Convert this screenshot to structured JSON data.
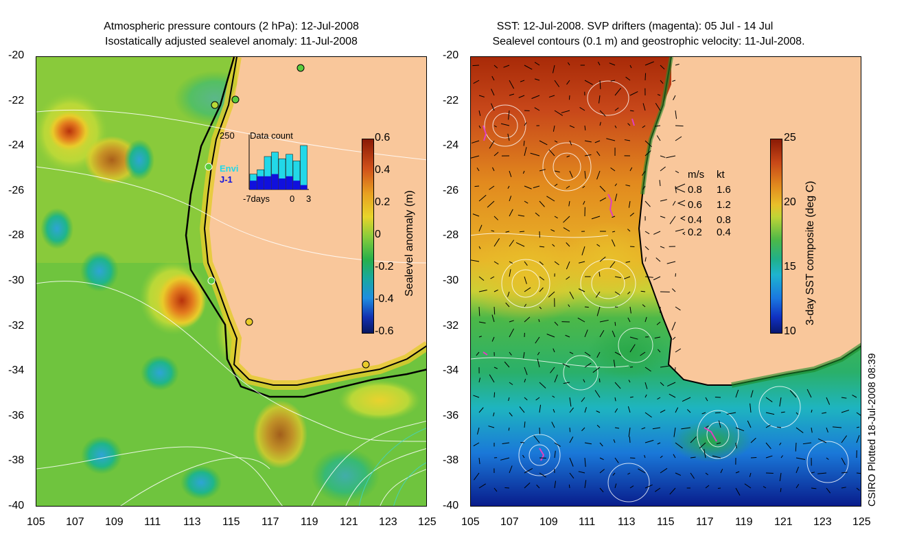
{
  "left_panel": {
    "title_line1": "Atmospheric pressure contours (2 hPa): 12-Jul-2008",
    "title_line2": "Isostatically adjusted sealevel anomaly: 11-Jul-2008",
    "colorbar": {
      "label": "Sealevel anomaly (m)",
      "ticks": [
        "0.6",
        "0.4",
        "0.2",
        "0",
        "-0.2",
        "-0.4",
        "-0.6"
      ],
      "range": [
        -0.6,
        0.6
      ]
    },
    "inset": {
      "title": "Data count",
      "ymax_label": "250",
      "x_labels": [
        "-7days",
        "0",
        "3"
      ],
      "legend": [
        {
          "name": "Envi",
          "color": "#22d8e8"
        },
        {
          "name": "J-1",
          "color": "#1010dd"
        }
      ],
      "envi_counts": [
        70,
        90,
        150,
        170,
        140,
        160,
        130,
        200
      ],
      "j1_counts": [
        40,
        60,
        60,
        70,
        50,
        60,
        40,
        20
      ]
    }
  },
  "right_panel": {
    "title_line1": "SST: 12-Jul-2008. SVP drifters (magenta): 05 Jul - 14 Jul",
    "title_line2": "Sealevel contours (0.1 m) and geostrophic velocity: 11-Jul-2008.",
    "colorbar": {
      "label": "3-day SST composite (deg C)",
      "ticks": [
        "25",
        "20",
        "15",
        "10"
      ],
      "range": [
        10,
        25
      ]
    },
    "velocity_legend": {
      "headers": [
        "m/s",
        "kt"
      ],
      "rows": [
        {
          "ms": "0.8",
          "kt": "1.6"
        },
        {
          "ms": "0.6",
          "kt": "1.2"
        },
        {
          "ms": "0.4",
          "kt": "0.8"
        },
        {
          "ms": "0.2",
          "kt": "0.4"
        }
      ]
    }
  },
  "axes": {
    "x_ticks": [
      "105",
      "107",
      "109",
      "111",
      "113",
      "115",
      "117",
      "119",
      "121",
      "123",
      "125"
    ],
    "y_ticks": [
      "-20",
      "-22",
      "-24",
      "-26",
      "-28",
      "-30",
      "-32",
      "-34",
      "-36",
      "-38",
      "-40"
    ],
    "lon_range": [
      105,
      125
    ],
    "lat_range": [
      -20,
      -40
    ]
  },
  "credit": "CSIRO Plotted 18-Jul-2008 08:39",
  "colors": {
    "land": "#f9c79b",
    "coast": "#000000",
    "contour": "#ffffff",
    "drifter": "#e040c0"
  }
}
